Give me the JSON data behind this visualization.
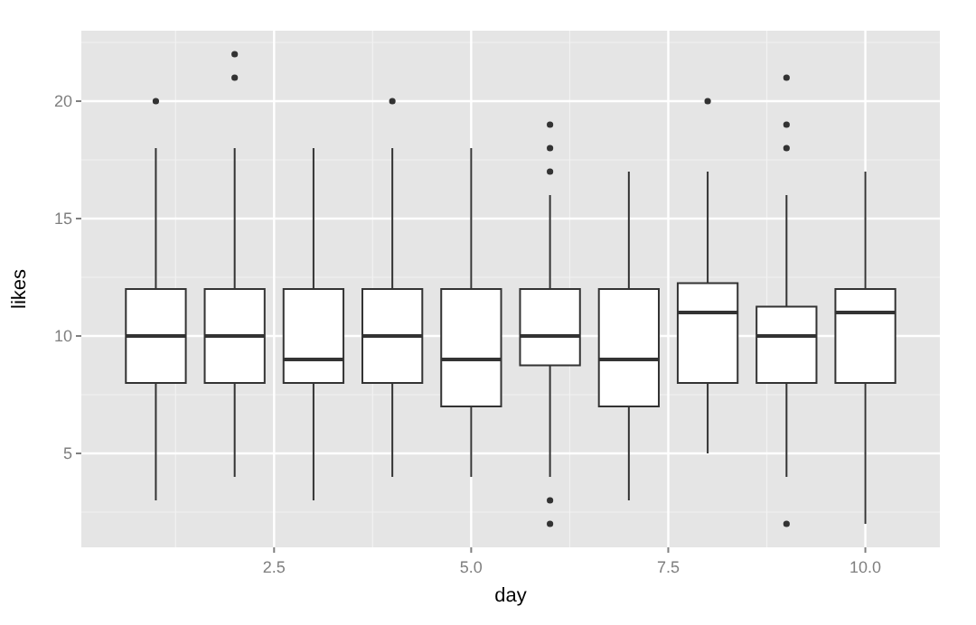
{
  "chart_data": {
    "type": "box",
    "xlabel": "day",
    "ylabel": "likes",
    "x": [
      1,
      2,
      3,
      4,
      5,
      6,
      7,
      8,
      9,
      10
    ],
    "xlim": [
      0.055,
      10.945
    ],
    "xticks": [
      {
        "value": 2.5,
        "label": "2.5"
      },
      {
        "value": 5,
        "label": "5.0"
      },
      {
        "value": 7.5,
        "label": "7.5"
      },
      {
        "value": 10,
        "label": "10.0"
      }
    ],
    "ylim": [
      1,
      23
    ],
    "yticks": [
      5,
      10,
      15,
      20
    ],
    "grid": true,
    "color": "#333333",
    "boxes": [
      {
        "low": 3,
        "q1": 8,
        "median": 10,
        "q3": 12,
        "high": 18,
        "outliers": [
          20
        ]
      },
      {
        "low": 4,
        "q1": 8,
        "median": 10,
        "q3": 12,
        "high": 18,
        "outliers": [
          21,
          22
        ]
      },
      {
        "low": 3,
        "q1": 8,
        "median": 9,
        "q3": 12,
        "high": 18
      },
      {
        "low": 4,
        "q1": 8,
        "median": 10,
        "q3": 12,
        "high": 18,
        "outliers": [
          20
        ]
      },
      {
        "low": 4,
        "q1": 7,
        "median": 9,
        "q3": 12,
        "high": 18
      },
      {
        "low": 4,
        "q1": 8.75,
        "median": 10,
        "q3": 12,
        "high": 16,
        "outliers": [
          17,
          18,
          19,
          3,
          2
        ]
      },
      {
        "low": 3,
        "q1": 7,
        "median": 9,
        "q3": 12,
        "high": 17
      },
      {
        "low": 5,
        "q1": 8,
        "median": 11,
        "q3": 12.25,
        "high": 17,
        "outliers": [
          20
        ]
      },
      {
        "low": 4,
        "q1": 8,
        "median": 10,
        "q3": 11.25,
        "high": 16,
        "outliers": [
          18,
          19,
          21,
          2
        ]
      },
      {
        "low": 2,
        "q1": 8,
        "median": 11,
        "q3": 12,
        "high": 17
      }
    ]
  }
}
